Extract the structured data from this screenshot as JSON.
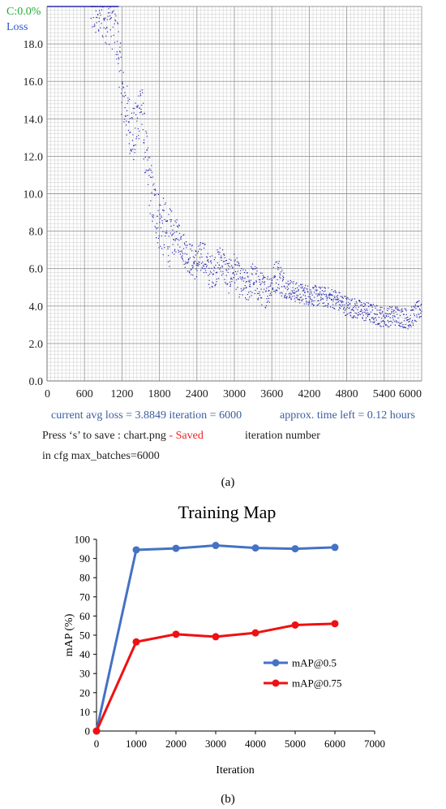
{
  "chart_data": [
    {
      "type": "scatter",
      "title": "",
      "header_labels": {
        "accuracy": "C:0.0%",
        "loss": "Loss"
      },
      "colors": {
        "points": "#2a2ab0",
        "accuracy_label": "#22aa33",
        "loss_label": "#3355cc",
        "grid": "#bfbfbf"
      },
      "xlim": [
        0,
        6000
      ],
      "ylim": [
        0,
        20
      ],
      "x_ticks": [
        "0",
        "600",
        "1200",
        "1800",
        "2400",
        "3000",
        "3600",
        "4200",
        "4800",
        "5400",
        "6000"
      ],
      "y_ticks": [
        "0.0",
        "2.0",
        "4.0",
        "6.0",
        "8.0",
        "10.0",
        "12.0",
        "14.0",
        "16.0",
        "18.0"
      ],
      "trend": {
        "x": [
          0,
          700,
          1000,
          1100,
          1150,
          1200,
          1300,
          1400,
          1500,
          1600,
          1700,
          1800,
          1900,
          2000,
          2100,
          2200,
          2300,
          2400,
          2500,
          2600,
          2700,
          2800,
          2900,
          3000,
          3100,
          3200,
          3300,
          3400,
          3500,
          3600,
          3700,
          3800,
          3900,
          4000,
          4200,
          4400,
          4600,
          4800,
          5000,
          5200,
          5400,
          5600,
          5800,
          6000
        ],
        "y": [
          20,
          20,
          19.5,
          19.0,
          17.5,
          15.5,
          14.0,
          13.0,
          15.0,
          11.5,
          9.5,
          8.5,
          8.0,
          7.5,
          7.8,
          7.0,
          6.5,
          6.2,
          6.8,
          5.8,
          6.0,
          6.5,
          5.5,
          6.0,
          5.2,
          5.0,
          5.5,
          5.0,
          4.8,
          5.2,
          5.8,
          5.0,
          4.9,
          4.7,
          4.6,
          4.5,
          4.4,
          4.0,
          3.8,
          3.6,
          3.4,
          3.5,
          3.3,
          3.9
        ]
      },
      "footer": {
        "avg_loss": "current avg loss = 3.8849 iteration = 6000",
        "time_left": "approx. time left = 0.12 hours",
        "press_prefix": "Press ‘s’ to save : chart.png",
        "saved": " - Saved",
        "iter_label": "iteration number",
        "max_batches": "in cfg max_batches=6000"
      },
      "caption": "(a)"
    },
    {
      "type": "line",
      "title": "Training Map",
      "xlabel": "Iteration",
      "ylabel": "mAP (%)",
      "xlim": [
        0,
        7000
      ],
      "ylim": [
        0,
        100
      ],
      "x_ticks": [
        0,
        1000,
        2000,
        3000,
        4000,
        5000,
        6000,
        7000
      ],
      "y_ticks": [
        0,
        10,
        20,
        30,
        40,
        50,
        60,
        70,
        80,
        90,
        100
      ],
      "x": [
        0,
        1000,
        2000,
        3000,
        4000,
        5000,
        6000
      ],
      "series": [
        {
          "name": "mAP@0.5",
          "color": "#4472c4",
          "values": [
            0,
            94.5,
            95.3,
            96.8,
            95.5,
            95.1,
            95.8
          ]
        },
        {
          "name": "mAP@0.75",
          "color": "#ee1111",
          "values": [
            0,
            46.5,
            50.5,
            49.2,
            51.2,
            55.3,
            56.0
          ]
        }
      ],
      "legend": "bottom-right",
      "caption": "(b)"
    }
  ]
}
